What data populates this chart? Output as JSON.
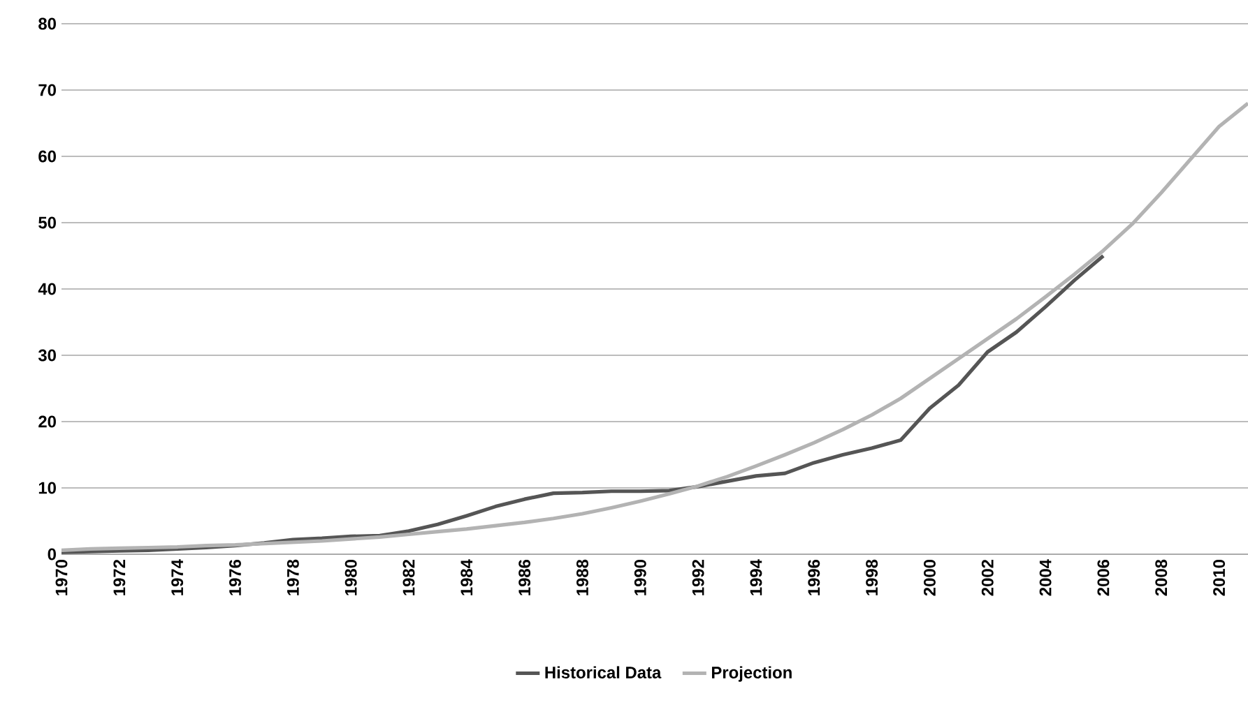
{
  "chart_data": {
    "type": "line",
    "categories": [
      "1970",
      null,
      "1972",
      null,
      "1974",
      null,
      "1976",
      null,
      "1978",
      null,
      "1980",
      null,
      "1982",
      null,
      "1984",
      null,
      "1986",
      null,
      "1988",
      null,
      "1990",
      null,
      "1992",
      null,
      "1994",
      null,
      "1996",
      null,
      "1998",
      null,
      "2000",
      null,
      "2002",
      null,
      "2004",
      null,
      "2006",
      null,
      "2008",
      null,
      "2010",
      null
    ],
    "series": [
      {
        "name": "Historical Data",
        "color": "#555555",
        "values": [
          0.3,
          0.4,
          0.5,
          0.6,
          0.8,
          1.0,
          1.3,
          1.7,
          2.2,
          2.4,
          2.7,
          2.8,
          3.5,
          4.5,
          5.8,
          7.2,
          8.3,
          9.2,
          9.3,
          9.5,
          9.5,
          9.6,
          10.2,
          11,
          11.8,
          12.2,
          13.8,
          15,
          16,
          17.2,
          22,
          25.5,
          30.5,
          33.5,
          37.3,
          41.3,
          45,
          null,
          null,
          null,
          null,
          null
        ]
      },
      {
        "name": "Projection",
        "color": "#b3b3b3",
        "values": [
          0.6,
          0.8,
          0.9,
          1.0,
          1.1,
          1.3,
          1.4,
          1.6,
          1.8,
          2.0,
          2.3,
          2.6,
          3.0,
          3.4,
          3.8,
          4.3,
          4.8,
          5.4,
          6.1,
          7.0,
          8.0,
          9.1,
          10.3,
          11.7,
          13.3,
          15.0,
          16.8,
          18.8,
          21.0,
          23.5,
          26.5,
          29.5,
          32.5,
          35.5,
          38.8,
          42.2,
          45.8,
          49.8,
          54.5,
          59.5,
          64.5,
          68
        ]
      }
    ],
    "ylim": [
      0,
      80
    ],
    "yticks": [
      0,
      10,
      20,
      30,
      40,
      50,
      60,
      70,
      80
    ],
    "grid": "y",
    "legend": "bottom",
    "marker": "none",
    "line_style": "solid"
  }
}
